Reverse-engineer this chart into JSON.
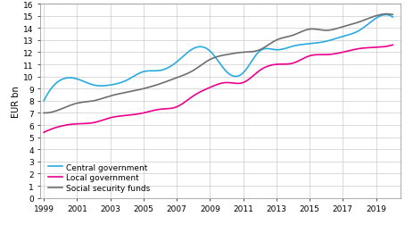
{
  "years": [
    1999,
    2000,
    2001,
    2002,
    2003,
    2004,
    2005,
    2006,
    2007,
    2008,
    2009,
    2010,
    2011,
    2012,
    2013,
    2014,
    2015,
    2016,
    2017,
    2018,
    2019,
    2020
  ],
  "central_government": [
    8.0,
    9.7,
    9.8,
    9.3,
    9.3,
    9.7,
    10.4,
    10.5,
    11.2,
    12.3,
    12.1,
    10.4,
    10.3,
    12.1,
    12.2,
    12.5,
    12.7,
    12.9,
    13.3,
    13.8,
    14.8,
    14.9
  ],
  "local_government": [
    5.4,
    5.9,
    6.1,
    6.2,
    6.6,
    6.8,
    7.0,
    7.3,
    7.5,
    8.4,
    9.1,
    9.5,
    9.5,
    10.5,
    11.0,
    11.1,
    11.7,
    11.8,
    12.0,
    12.3,
    12.4,
    12.6
  ],
  "social_security_funds": [
    7.0,
    7.3,
    7.8,
    8.0,
    8.4,
    8.7,
    9.0,
    9.4,
    9.9,
    10.5,
    11.4,
    11.8,
    12.0,
    12.2,
    13.0,
    13.4,
    13.9,
    13.8,
    14.1,
    14.5,
    15.0,
    15.1
  ],
  "color_central": "#29abe2",
  "color_local": "#ec008c",
  "color_social": "#6d6e70",
  "ylabel": "EUR bn",
  "ylim": [
    0,
    16
  ],
  "yticks": [
    0,
    1,
    2,
    3,
    4,
    5,
    6,
    7,
    8,
    9,
    10,
    11,
    12,
    13,
    14,
    15,
    16
  ],
  "xticks": [
    1999,
    2001,
    2003,
    2005,
    2007,
    2009,
    2011,
    2013,
    2015,
    2017,
    2019
  ],
  "xlim": [
    1998.8,
    2020.5
  ],
  "legend_labels": [
    "Central government",
    "Local government",
    "Social security funds"
  ],
  "grid_color": "#cccccc",
  "linewidth": 1.2,
  "tick_fontsize": 6.5,
  "ylabel_fontsize": 7,
  "legend_fontsize": 6.5
}
